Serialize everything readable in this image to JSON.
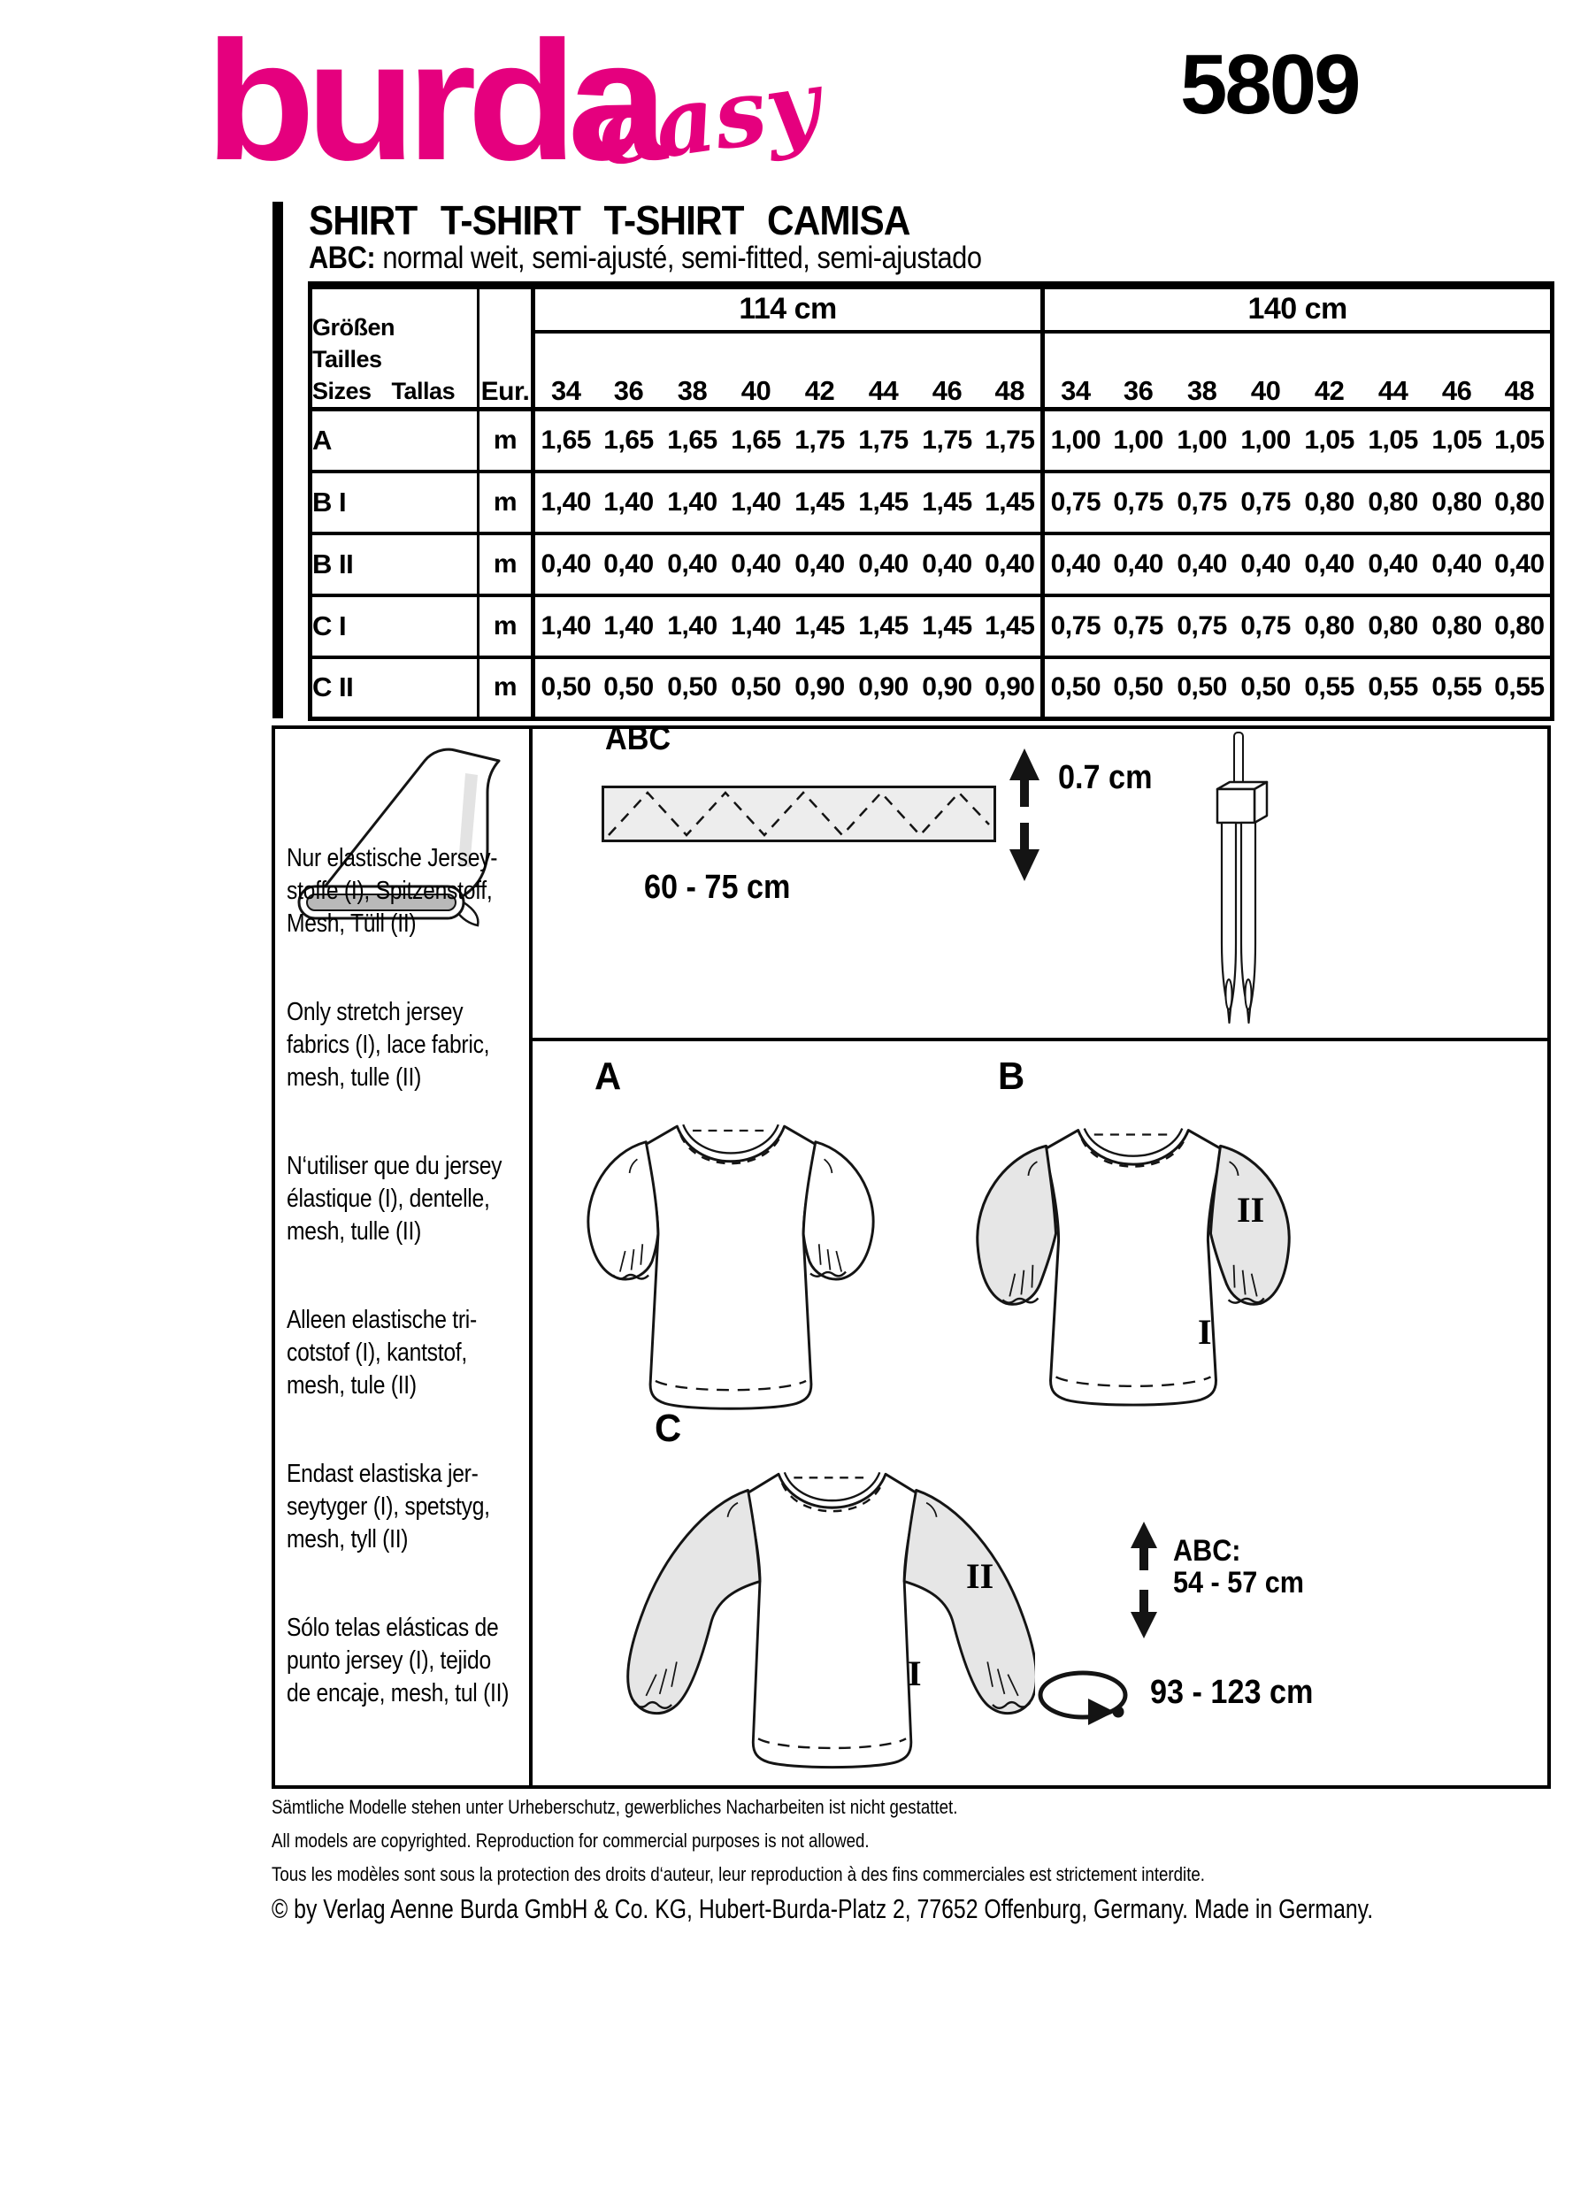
{
  "brand": {
    "logo": "burda",
    "logo_script": "easy",
    "pattern_number": "5809",
    "accent_color": "#E5007E"
  },
  "header": {
    "title": "SHIRT T-SHIRT T-SHIRT CAMISA",
    "subtitle_prefix": "ABC:",
    "subtitle": " normal weit, semi-ajusté, semi-fitted, semi-ajustado"
  },
  "size_table": {
    "corner_header": "Größen Tailles\nSizes Tallas",
    "eur_header": "Eur.",
    "width_groups": [
      {
        "label": "114 cm"
      },
      {
        "label": "140 cm"
      }
    ],
    "sizes": [
      "34",
      "36",
      "38",
      "40",
      "42",
      "44",
      "46",
      "48"
    ],
    "rows": [
      {
        "label": "A",
        "unit": "m",
        "values": [
          "1,65",
          "1,65",
          "1,65",
          "1,65",
          "1,75",
          "1,75",
          "1,75",
          "1,75",
          "1,00",
          "1,00",
          "1,00",
          "1,00",
          "1,05",
          "1,05",
          "1,05",
          "1,05"
        ]
      },
      {
        "label": "B I",
        "unit": "m",
        "values": [
          "1,40",
          "1,40",
          "1,40",
          "1,40",
          "1,45",
          "1,45",
          "1,45",
          "1,45",
          "0,75",
          "0,75",
          "0,75",
          "0,75",
          "0,80",
          "0,80",
          "0,80",
          "0,80"
        ]
      },
      {
        "label": "B II",
        "unit": "m",
        "values": [
          "0,40",
          "0,40",
          "0,40",
          "0,40",
          "0,40",
          "0,40",
          "0,40",
          "0,40",
          "0,40",
          "0,40",
          "0,40",
          "0,40",
          "0,40",
          "0,40",
          "0,40",
          "0,40"
        ]
      },
      {
        "label": "C I",
        "unit": "m",
        "values": [
          "1,40",
          "1,40",
          "1,40",
          "1,40",
          "1,45",
          "1,45",
          "1,45",
          "1,45",
          "0,75",
          "0,75",
          "0,75",
          "0,75",
          "0,80",
          "0,80",
          "0,80",
          "0,80"
        ]
      },
      {
        "label": "C II",
        "unit": "m",
        "values": [
          "0,50",
          "0,50",
          "0,50",
          "0,50",
          "0,90",
          "0,90",
          "0,90",
          "0,90",
          "0,50",
          "0,50",
          "0,50",
          "0,50",
          "0,55",
          "0,55",
          "0,55",
          "0,55"
        ]
      }
    ]
  },
  "fabric_advice": {
    "paragraphs": [
      "Nur elastische Jersey-\nstoffe (I), Spitzenstoff,\nMesh, Tüll (II)",
      "Only stretch jersey\nfabrics (I), lace fabric,\nmesh, tulle (II)",
      "N‘utiliser que du jersey\nélastique (I), dentelle,\nmesh, tulle (II)",
      "Alleen elastische tri-\ncotstof (I), kantstof,\nmesh, tule (II)",
      "Endast elastiska jer-\nseytyger (I), spetstyg,\nmesh, tyll (II)",
      "Sólo telas elásticas de\npunto jersey (I), tejido\nde encaje, mesh, tul (II)"
    ]
  },
  "notions": {
    "views_label": "ABC",
    "strip_length": "60 - 75 cm",
    "strip_width": "0.7 cm"
  },
  "views": {
    "a_label": "A",
    "b_label": "B",
    "c_label": "C",
    "fabric_main": "I",
    "fabric_contrast": "II",
    "length_label": "ABC:",
    "length_value": "54 - 57 cm",
    "circumference_value": "93 - 123 cm"
  },
  "footer": {
    "lines": [
      "Sämtliche Modelle stehen unter Urheberschutz, gewerbliches Nacharbeiten ist nicht gestattet.",
      "All models are copyrighted. Reproduction for commercial purposes is not allowed.",
      "Tous les modèles sont sous la protection des droits d‘auteur, leur reproduction à des fins commerciales est strictement interdite."
    ],
    "copyright": "© by Verlag Aenne Burda GmbH & Co. KG, Hubert-Burda-Platz 2, 77652 Offenburg, Germany. Made in Germany."
  }
}
